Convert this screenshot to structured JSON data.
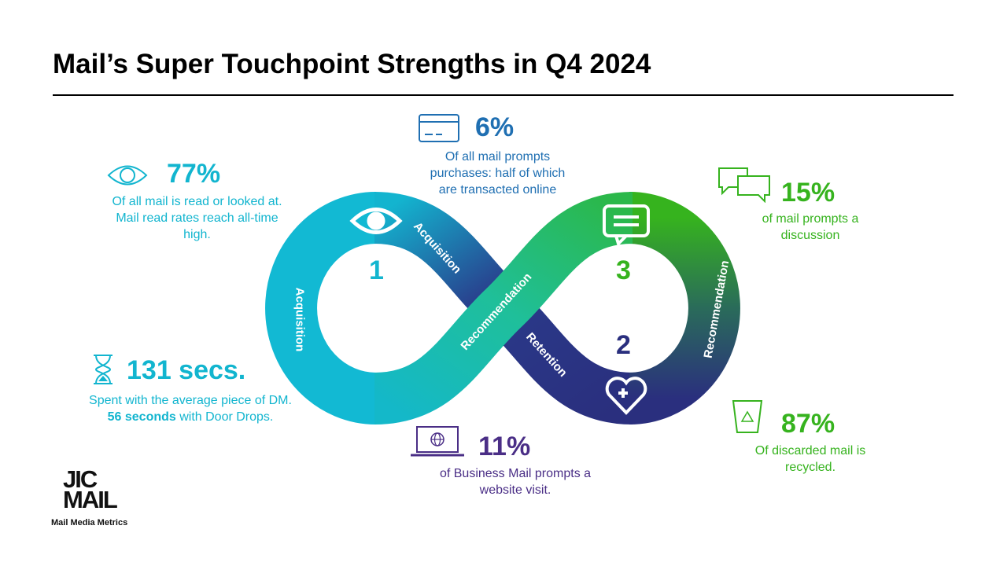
{
  "title": "Mail’s Super Touchpoint Strengths in Q4 2024",
  "colors": {
    "cyan": "#12b5cf",
    "blue": "#1f6fb2",
    "green": "#36b31e",
    "purple": "#4a2e86",
    "navy": "#2a2f7e",
    "teal": "#1fbf9a"
  },
  "stats": {
    "read": {
      "value": "77%",
      "text": "Of all mail is read or looked at. Mail read rates reach all-time high.",
      "icon": "eye-icon"
    },
    "purchase": {
      "value": "6%",
      "text": "Of all mail prompts purchases: half of which are transacted online",
      "icon": "credit-card-icon"
    },
    "discussion": {
      "value": "15%",
      "text": "of mail prompts a discussion",
      "icon": "speech-bubbles-icon"
    },
    "time": {
      "value": "131 secs.",
      "text_pre": "Spent with the average piece of DM. ",
      "text_bold": "56 seconds",
      "text_post": " with Door Drops.",
      "icon": "hourglass-icon"
    },
    "website": {
      "value": "11%",
      "text": "of Business Mail prompts a website visit.",
      "icon": "laptop-globe-icon"
    },
    "recycle": {
      "value": "87%",
      "text": "Of discarded mail is recycled.",
      "icon": "recycle-bin-icon"
    }
  },
  "diagram": {
    "labels": {
      "acq_left": "Acquisition",
      "acq_top": "Acquisition",
      "recommendation_mid": "Recommendation",
      "retention": "Retention",
      "recommendation_right": "Recommendation"
    },
    "numbers": [
      "1",
      "2",
      "3"
    ]
  },
  "logo": {
    "line1": "JIC",
    "line2": "MAIL",
    "tagline": "Mail Media Metrics"
  }
}
